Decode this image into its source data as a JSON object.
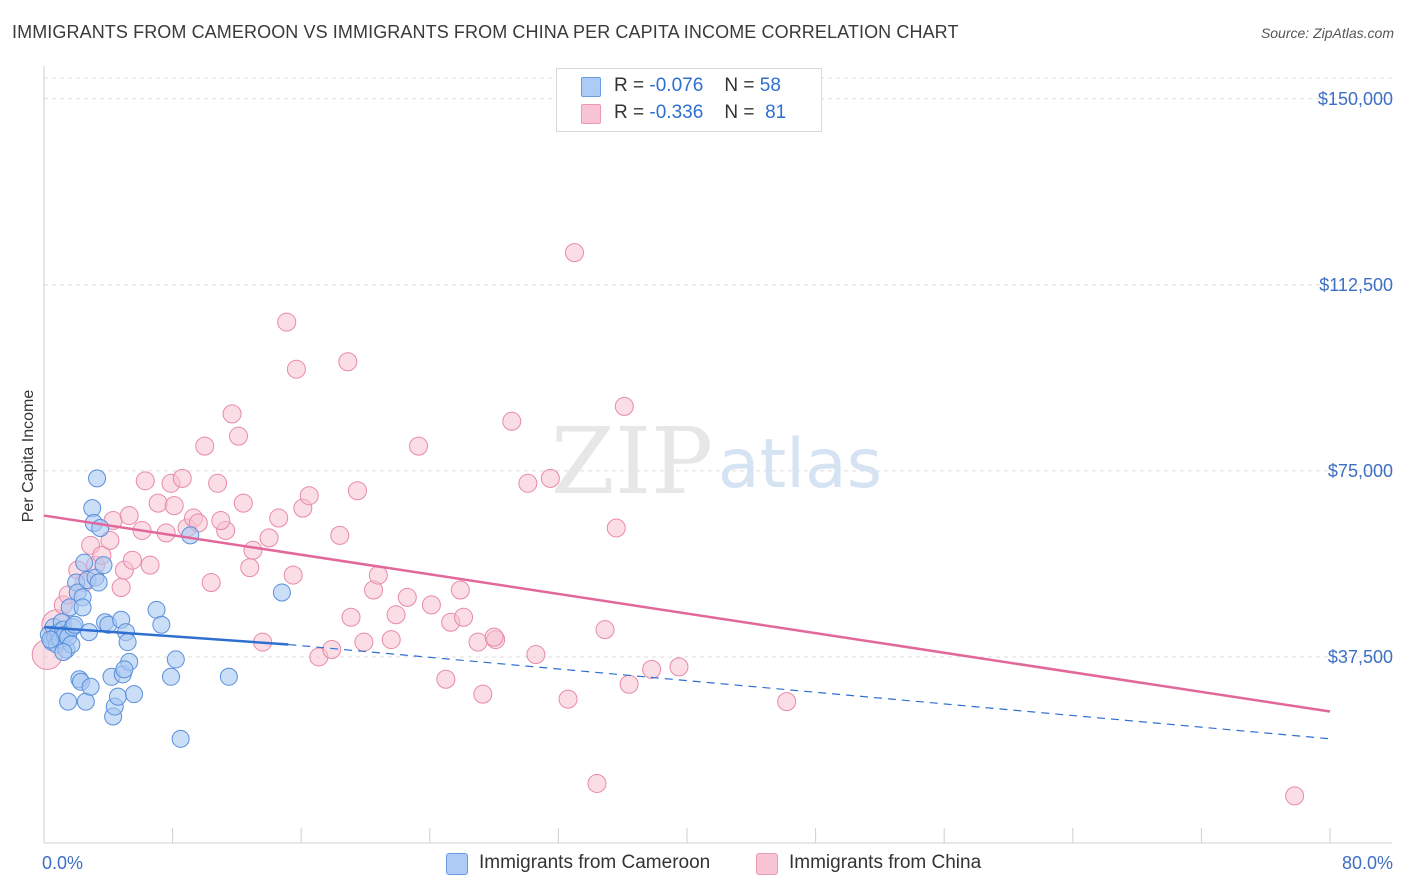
{
  "title": "IMMIGRANTS FROM CAMEROON VS IMMIGRANTS FROM CHINA PER CAPITA INCOME CORRELATION CHART",
  "source": "Source: ZipAtlas.com",
  "watermark": {
    "zip": "ZIP",
    "atlas": "atlas"
  },
  "legend_stats": {
    "r_label": "R =",
    "n_label": "N =",
    "rows": [
      {
        "r": "-0.076",
        "n": "58",
        "color": "#aecbf5"
      },
      {
        "r": "-0.336",
        "n": "81",
        "color": "#f9c4d4"
      }
    ]
  },
  "colors": {
    "cameroon_fill": "#a9c8f2",
    "cameroon_stroke": "#5a8fdc",
    "cameroon_line": "#2f6fd0",
    "china_fill": "#f8c1d2",
    "china_stroke": "#e88aa8",
    "china_line": "#e2679a",
    "tick_text": "#3d6fc4",
    "grid": "#dcdcdc"
  },
  "chart_data": {
    "type": "scatter",
    "title": "IMMIGRANTS FROM CAMEROON VS IMMIGRANTS FROM CHINA PER CAPITA INCOME CORRELATION CHART",
    "xlabel": "",
    "ylabel": "Per Capita Income",
    "xlim": [
      0,
      80
    ],
    "ylim": [
      0,
      155000
    ],
    "x_ticks": [
      "0.0%",
      "80.0%"
    ],
    "y_ticks": [
      {
        "value": 37500,
        "label": "$37,500"
      },
      {
        "value": 75000,
        "label": "$75,000"
      },
      {
        "value": 112500,
        "label": "$112,500"
      },
      {
        "value": 150000,
        "label": "$150,000"
      }
    ],
    "grid": "horizontal dashed",
    "legend": [
      "top-center",
      "bottom"
    ],
    "series": [
      {
        "name": "Immigrants from Cameroon",
        "r": -0.076,
        "n": 58,
        "trend_solid": {
          "x": [
            0,
            15.2
          ],
          "y": [
            43500,
            40000
          ]
        },
        "trend_dashed": {
          "x": [
            15.2,
            80
          ],
          "y": [
            40000,
            21000
          ]
        },
        "points": [
          [
            0.3,
            42000
          ],
          [
            0.5,
            40500
          ],
          [
            0.6,
            43500
          ],
          [
            0.7,
            41500
          ],
          [
            0.8,
            40000
          ],
          [
            0.9,
            42500
          ],
          [
            1.0,
            41000
          ],
          [
            1.1,
            44500
          ],
          [
            1.2,
            43000
          ],
          [
            1.3,
            42000
          ],
          [
            1.4,
            39000
          ],
          [
            1.5,
            41500
          ],
          [
            1.6,
            47500
          ],
          [
            1.7,
            40000
          ],
          [
            1.8,
            43500
          ],
          [
            1.9,
            44000
          ],
          [
            2.0,
            52500
          ],
          [
            2.1,
            50500
          ],
          [
            2.2,
            33000
          ],
          [
            2.3,
            32500
          ],
          [
            2.4,
            49500
          ],
          [
            2.5,
            56500
          ],
          [
            2.7,
            53000
          ],
          [
            2.8,
            42500
          ],
          [
            3.0,
            67500
          ],
          [
            3.1,
            64500
          ],
          [
            3.2,
            53500
          ],
          [
            3.3,
            73500
          ],
          [
            3.5,
            63500
          ],
          [
            3.7,
            56000
          ],
          [
            3.8,
            44500
          ],
          [
            4.0,
            44000
          ],
          [
            4.2,
            33500
          ],
          [
            4.3,
            25500
          ],
          [
            4.4,
            27500
          ],
          [
            4.6,
            29500
          ],
          [
            4.8,
            45000
          ],
          [
            4.9,
            34000
          ],
          [
            5.1,
            42500
          ],
          [
            5.2,
            40500
          ],
          [
            5.3,
            36500
          ],
          [
            5.6,
            30000
          ],
          [
            7.0,
            47000
          ],
          [
            7.3,
            44000
          ],
          [
            7.9,
            33500
          ],
          [
            8.2,
            37000
          ],
          [
            8.5,
            21000
          ],
          [
            9.1,
            62000
          ],
          [
            11.5,
            33500
          ],
          [
            14.8,
            50500
          ],
          [
            2.6,
            28500
          ],
          [
            1.5,
            28500
          ],
          [
            2.9,
            31500
          ],
          [
            0.4,
            41000
          ],
          [
            1.2,
            38500
          ],
          [
            2.4,
            47500
          ],
          [
            3.4,
            52500
          ],
          [
            5.0,
            35000
          ]
        ]
      },
      {
        "name": "Immigrants from China",
        "r": -0.336,
        "n": 81,
        "trend_solid": {
          "x": [
            0,
            80
          ],
          "y": [
            66000,
            26500
          ]
        },
        "points": [
          [
            0.2,
            38000
          ],
          [
            0.8,
            44000
          ],
          [
            1.2,
            48000
          ],
          [
            1.5,
            50000
          ],
          [
            2.1,
            55000
          ],
          [
            2.5,
            52500
          ],
          [
            2.9,
            60000
          ],
          [
            3.2,
            56000
          ],
          [
            3.6,
            58000
          ],
          [
            4.1,
            61000
          ],
          [
            4.3,
            65000
          ],
          [
            4.8,
            51500
          ],
          [
            5.0,
            55000
          ],
          [
            5.3,
            66000
          ],
          [
            5.5,
            57000
          ],
          [
            6.1,
            63000
          ],
          [
            6.3,
            73000
          ],
          [
            6.6,
            56000
          ],
          [
            7.1,
            68500
          ],
          [
            7.6,
            62500
          ],
          [
            7.9,
            72500
          ],
          [
            8.1,
            68000
          ],
          [
            8.6,
            73500
          ],
          [
            8.9,
            63500
          ],
          [
            9.3,
            65500
          ],
          [
            9.6,
            64500
          ],
          [
            10.0,
            80000
          ],
          [
            10.4,
            52500
          ],
          [
            10.8,
            72500
          ],
          [
            11.3,
            63000
          ],
          [
            11.7,
            86500
          ],
          [
            12.1,
            82000
          ],
          [
            12.4,
            68500
          ],
          [
            12.8,
            55500
          ],
          [
            13.0,
            59000
          ],
          [
            13.6,
            40500
          ],
          [
            14.0,
            61500
          ],
          [
            14.6,
            65500
          ],
          [
            15.1,
            105000
          ],
          [
            15.5,
            54000
          ],
          [
            15.7,
            95500
          ],
          [
            16.1,
            67500
          ],
          [
            16.5,
            70000
          ],
          [
            17.1,
            37500
          ],
          [
            17.9,
            39000
          ],
          [
            18.4,
            62000
          ],
          [
            18.9,
            97000
          ],
          [
            19.1,
            45500
          ],
          [
            19.5,
            71000
          ],
          [
            19.9,
            40500
          ],
          [
            20.5,
            51000
          ],
          [
            20.8,
            54000
          ],
          [
            21.6,
            41000
          ],
          [
            21.9,
            46000
          ],
          [
            22.6,
            49500
          ],
          [
            23.3,
            80000
          ],
          [
            24.1,
            48000
          ],
          [
            25.0,
            33000
          ],
          [
            25.3,
            44500
          ],
          [
            25.9,
            51000
          ],
          [
            26.1,
            45500
          ],
          [
            27.0,
            40500
          ],
          [
            27.3,
            30000
          ],
          [
            28.1,
            41000
          ],
          [
            29.1,
            85000
          ],
          [
            30.1,
            72500
          ],
          [
            30.6,
            38000
          ],
          [
            31.5,
            73500
          ],
          [
            32.6,
            29000
          ],
          [
            33.0,
            119000
          ],
          [
            34.4,
            12000
          ],
          [
            34.9,
            43000
          ],
          [
            35.6,
            63500
          ],
          [
            36.1,
            88000
          ],
          [
            36.4,
            32000
          ],
          [
            37.8,
            35000
          ],
          [
            39.5,
            35500
          ],
          [
            46.2,
            28500
          ],
          [
            77.8,
            9500
          ],
          [
            28.0,
            41500
          ],
          [
            11.0,
            65000
          ]
        ]
      }
    ]
  }
}
